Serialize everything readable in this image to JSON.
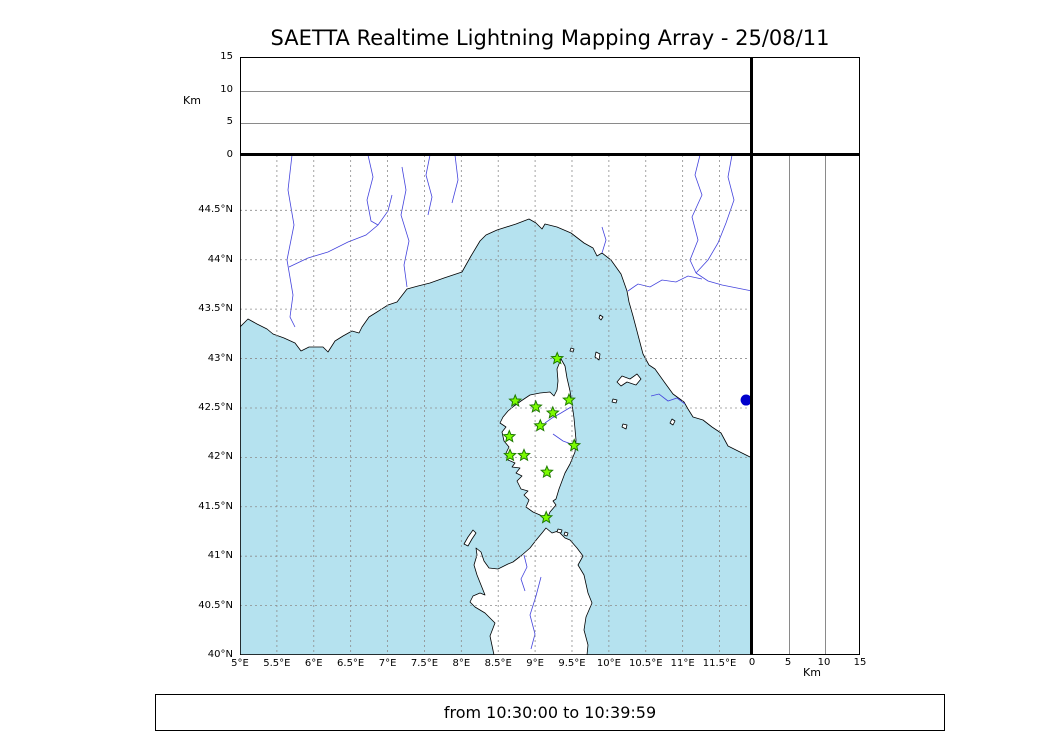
{
  "title": "SAETTA Realtime Lightning Mapping Array - 25/08/11",
  "footer": {
    "time_range": "from 10:30:00 to 10:39:59"
  },
  "altitude_axis": {
    "label": "Km",
    "max_km": 15,
    "top_ticks": [
      "15",
      "10",
      "5",
      "0"
    ],
    "right_ticks": [
      "0",
      "5",
      "10",
      "15"
    ],
    "gridlines_km": [
      5,
      10
    ]
  },
  "map": {
    "lon_ticks": [
      "5°E",
      "5.5°E",
      "6°E",
      "6.5°E",
      "7°E",
      "7.5°E",
      "8°E",
      "8.5°E",
      "9°E",
      "9.5°E",
      "10°E",
      "10.5°E",
      "11°E",
      "11.5°E"
    ],
    "lat_ticks": [
      "44.5°N",
      "44°N",
      "43.5°N",
      "43°N",
      "42.5°N",
      "42°N",
      "41.5°N",
      "41°N",
      "40.5°N",
      "40°N"
    ],
    "lon_min": 5.0,
    "lon_max": 11.94,
    "lat_min": 40.0,
    "lat_max": 45.06,
    "colors": {
      "sea": "#b5e2ef",
      "land": "#ffffff",
      "coast": "#000000",
      "river": "#4444dd",
      "grid": "#8c8c8c"
    }
  },
  "stations": {
    "name": "lightning-mapping-array-stations",
    "marker": "star",
    "fill": "#7cfc00",
    "edge": "#1e7a00",
    "points": [
      {
        "lon": 9.3,
        "lat": 43.0
      },
      {
        "lon": 8.73,
        "lat": 42.57
      },
      {
        "lon": 9.01,
        "lat": 42.51
      },
      {
        "lon": 9.46,
        "lat": 42.58
      },
      {
        "lon": 9.24,
        "lat": 42.45
      },
      {
        "lon": 9.07,
        "lat": 42.32
      },
      {
        "lon": 8.65,
        "lat": 42.21
      },
      {
        "lon": 9.53,
        "lat": 42.12
      },
      {
        "lon": 8.66,
        "lat": 42.02
      },
      {
        "lon": 8.85,
        "lat": 42.02
      },
      {
        "lon": 9.16,
        "lat": 41.85
      },
      {
        "lon": 9.15,
        "lat": 41.39
      }
    ]
  },
  "event_marker": {
    "shape": "circle",
    "color": "#0000cc",
    "lon": 11.86,
    "lat": 42.58
  }
}
